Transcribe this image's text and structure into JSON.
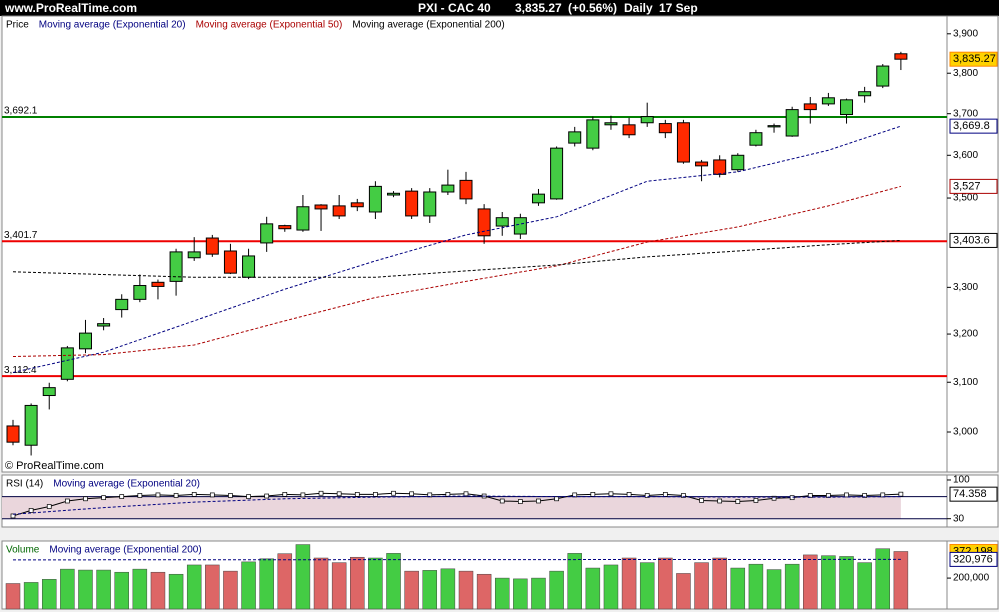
{
  "header": {
    "site": "www.ProRealTime.com",
    "title": "PXI - CAC 40",
    "last": "3,835.27",
    "change": "(+0.56%)",
    "period": "Daily",
    "date": "17 Sep"
  },
  "chart_data": [
    {
      "type": "candlestick",
      "log_scale": true,
      "ylim": [
        2922,
        3946
      ],
      "yticks": [
        {
          "value": 3900,
          "label": "3,900"
        },
        {
          "value": 3800,
          "label": "3,800"
        },
        {
          "value": 3700,
          "label": "3,700"
        },
        {
          "value": 3600,
          "label": "3,600"
        },
        {
          "value": 3500,
          "label": "3,500"
        },
        {
          "value": 3300,
          "label": "3,300"
        },
        {
          "value": 3200,
          "label": "3,200"
        },
        {
          "value": 3100,
          "label": "3,100"
        },
        {
          "value": 3000,
          "label": "3,000"
        }
      ],
      "watermark": "© ProRealTime.com",
      "candles": {
        "name": "Price",
        "up_color": "#44cc44",
        "down_color": "#ff2a00",
        "last_label": "3,835.27",
        "label_fill": "#ffd200",
        "open": [
          3012,
          2974,
          3073,
          3106,
          3169,
          3217,
          3252,
          3274,
          3311,
          3313,
          3365,
          3409,
          3380,
          3322,
          3398,
          3437,
          3427,
          3484,
          3482,
          3489,
          3468,
          3507,
          3516,
          3459,
          3514,
          3541,
          3475,
          3436,
          3418,
          3489,
          3498,
          3629,
          3617,
          3673,
          3673,
          3678,
          3676,
          3678,
          3584,
          3589,
          3566,
          3624,
          3668,
          3646,
          3724,
          3724,
          3698,
          3744,
          3768,
          3849
        ],
        "high": [
          3024,
          3057,
          3099,
          3175,
          3230,
          3234,
          3285,
          3328,
          3317,
          3385,
          3411,
          3416,
          3396,
          3385,
          3457,
          3439,
          3507,
          3486,
          3507,
          3498,
          3539,
          3516,
          3523,
          3523,
          3566,
          3561,
          3486,
          3468,
          3464,
          3521,
          3621,
          3668,
          3693,
          3695,
          3690,
          3727,
          3685,
          3685,
          3589,
          3600,
          3605,
          3661,
          3676,
          3717,
          3741,
          3751,
          3737,
          3766,
          3823,
          3854
        ],
        "low": [
          2974,
          2954,
          3045,
          3102,
          3160,
          3208,
          3235,
          3268,
          3274,
          3282,
          3358,
          3367,
          3329,
          3318,
          3378,
          3423,
          3423,
          3425,
          3452,
          3470,
          3452,
          3502,
          3452,
          3443,
          3507,
          3486,
          3396,
          3414,
          3407,
          3482,
          3496,
          3621,
          3612,
          3661,
          3641,
          3668,
          3641,
          3580,
          3539,
          3548,
          3561,
          3621,
          3654,
          3644,
          3676,
          3719,
          3676,
          3727,
          3763,
          3808
        ],
        "close": [
          2980,
          3053,
          3089,
          3171,
          3202,
          3222,
          3274,
          3304,
          3302,
          3378,
          3378,
          3373,
          3331,
          3369,
          3441,
          3430,
          3480,
          3475,
          3459,
          3480,
          3527,
          3511,
          3459,
          3514,
          3530,
          3498,
          3414,
          3455,
          3455,
          3509,
          3617,
          3656,
          3685,
          3678,
          3649,
          3693,
          3654,
          3584,
          3575,
          3555,
          3600,
          3654,
          3671,
          3710,
          3710,
          3739,
          3734,
          3754,
          3818,
          3835.27
        ]
      },
      "series": [
        {
          "name": "Moving average (Exponential 20)",
          "color": "#000080",
          "x": [
            0,
            5,
            10,
            15,
            20,
            25,
            30,
            35,
            40,
            45,
            49
          ],
          "values": [
            3120,
            3162,
            3228,
            3296,
            3358,
            3416,
            3457,
            3539,
            3561,
            3612,
            3669.8
          ],
          "last_label": "3,669.8"
        },
        {
          "name": "Moving average (Exponential 50)",
          "color": "#aa0000",
          "x": [
            0,
            5,
            10,
            15,
            20,
            25,
            30,
            35,
            40,
            45,
            49
          ],
          "values": [
            3153,
            3157,
            3177,
            3228,
            3278,
            3313,
            3347,
            3400,
            3434,
            3482,
            3527
          ],
          "last_label": "3,527"
        },
        {
          "name": "Moving average (Exponential 200)",
          "color": "#000000",
          "x": [
            0,
            10,
            20,
            25,
            30,
            35,
            40,
            45,
            49
          ],
          "values": [
            3334,
            3322,
            3322,
            3336,
            3349,
            3367,
            3380,
            3394,
            3403.6
          ],
          "last_label": "3,403.6"
        }
      ],
      "levels": [
        {
          "value": 3692.1,
          "label": "3,692.1",
          "color": "#008000"
        },
        {
          "value": 3401.7,
          "label": "3,401.7",
          "color": "#ee0000"
        },
        {
          "value": 3112.4,
          "label": "3,112.4",
          "color": "#ee0000"
        }
      ]
    },
    {
      "type": "line",
      "ylim": [
        15,
        109
      ],
      "yticks": [
        100,
        30
      ],
      "levels": [
        70,
        30
      ],
      "series": [
        {
          "name": "RSI (14)",
          "color": "#000000",
          "markers": true,
          "values": [
            35,
            45,
            52,
            62,
            66,
            68,
            70,
            72,
            73,
            72,
            74,
            73,
            72,
            70,
            71,
            74,
            73,
            76,
            75,
            74,
            74,
            76,
            75,
            73,
            74,
            75,
            71,
            62,
            61,
            62,
            66,
            73,
            74,
            75,
            74,
            72,
            74,
            72,
            63,
            62,
            61,
            63,
            67,
            68,
            72,
            72,
            73,
            72,
            73,
            74.358
          ],
          "last_label": "74.358"
        },
        {
          "name": "Moving average (Exponential 20)",
          "color": "#000080",
          "x": [
            0,
            5,
            10,
            15,
            20,
            25,
            30,
            35,
            40,
            45,
            49
          ],
          "values": [
            38,
            50,
            60,
            66,
            69,
            71,
            70,
            70,
            69,
            69,
            70
          ]
        }
      ]
    },
    {
      "type": "bar",
      "ylim": [
        0,
        440000
      ],
      "yticks": [
        {
          "value": 200000,
          "label": "200,000"
        }
      ],
      "bars": {
        "name": "Volume",
        "up_color": "#44cc44",
        "down_color": "#dd6666",
        "last_label": "372,198",
        "label_fill": "#ffd200",
        "values": [
          165000,
          172000,
          192000,
          258000,
          252000,
          252000,
          238000,
          258000,
          238000,
          225000,
          285000,
          285000,
          245000,
          305000,
          325000,
          358000,
          417000,
          330000,
          300000,
          335000,
          330000,
          360000,
          245000,
          250000,
          260000,
          245000,
          225000,
          200000,
          195000,
          200000,
          245000,
          360000,
          265000,
          285000,
          330000,
          300000,
          330000,
          230000,
          300000,
          330000,
          265000,
          290000,
          255000,
          290000,
          350000,
          345000,
          340000,
          300000,
          390000,
          372198
        ]
      },
      "series": [
        {
          "name": "Moving average (Exponential 200)",
          "color": "#000080",
          "x": [
            0,
            49
          ],
          "values": [
            318000,
            320976
          ],
          "last_label": "320,976"
        }
      ]
    }
  ]
}
